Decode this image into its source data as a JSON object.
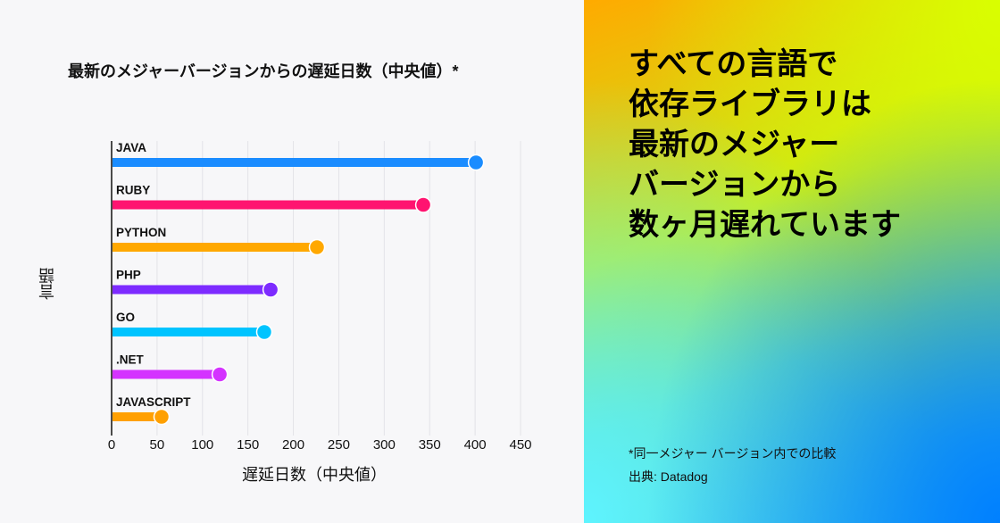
{
  "chart_data": {
    "type": "bar",
    "orientation": "horizontal",
    "style": "lollipop",
    "title": "最新のメジャーバージョンからの遅延日数（中央値）*",
    "xlabel": "遅延日数（中央値）",
    "ylabel": "言語",
    "xlim": [
      0,
      450
    ],
    "xticks": [
      0,
      50,
      100,
      150,
      200,
      250,
      300,
      350,
      400,
      450
    ],
    "grid": "vertical",
    "categories": [
      "JAVA",
      "RUBY",
      "PYTHON",
      "PHP",
      "GO",
      ".NET",
      "JAVASCRIPT"
    ],
    "values": [
      401,
      343,
      226,
      175,
      168,
      119,
      55
    ],
    "colors": [
      "#1a8cff",
      "#ff1470",
      "#ffa800",
      "#7d2bff",
      "#00c4ff",
      "#d433ff",
      "#ffa000"
    ]
  },
  "headline": "すべての言語で\n依存ライブラリは\n最新のメジャー\nバージョンから\n数ヶ月遅れています",
  "footnote": "*同一メジャー バージョン内での比較",
  "source": "出典: Datadog"
}
